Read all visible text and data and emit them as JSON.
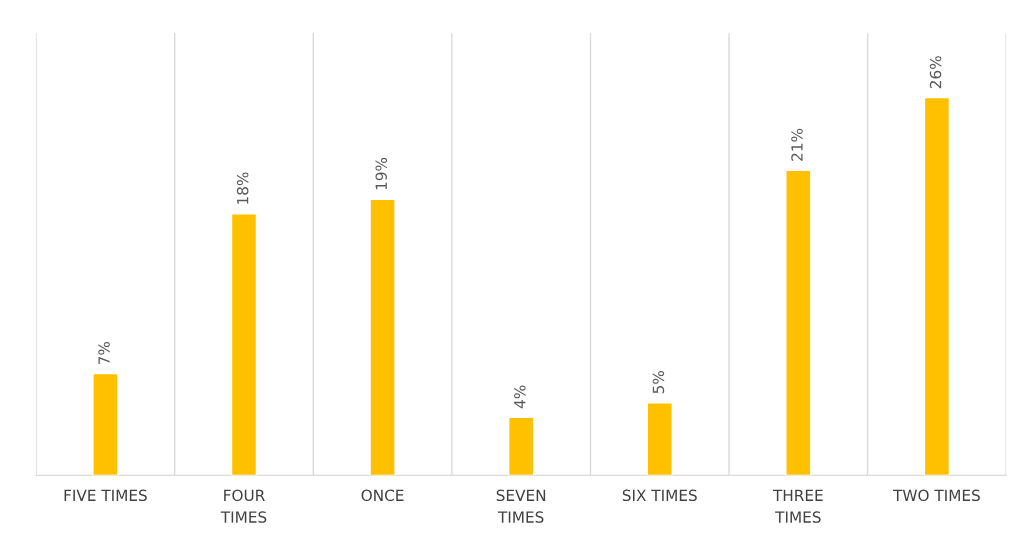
{
  "chart_data": {
    "type": "bar",
    "categories": [
      "FIVE TIMES",
      "FOUR\nTIMES",
      "ONCE",
      "SEVEN\nTIMES",
      "SIX TIMES",
      "THREE\nTIMES",
      "TWO TIMES"
    ],
    "values": [
      7,
      18,
      19,
      4,
      5,
      21,
      26
    ],
    "value_labels": [
      "7%",
      "18%",
      "19%",
      "4%",
      "5%",
      "21%",
      "26%"
    ],
    "color": "#ffc000",
    "grid": "x"
  }
}
